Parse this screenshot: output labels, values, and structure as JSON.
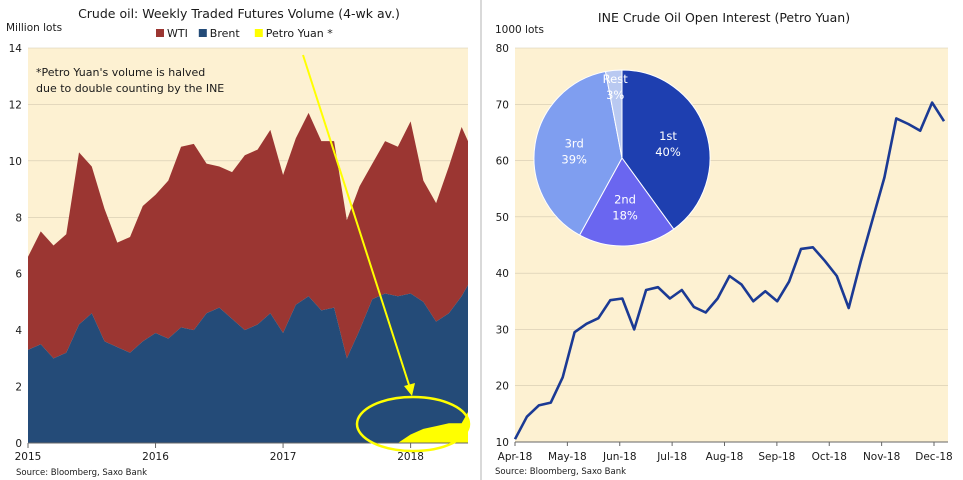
{
  "left": {
    "title": "Crude oil: Weekly Traded Futures Volume (4-wk av.)",
    "ylabel": "Million lots",
    "note_line1": "*Petro Yuan's volume is halved",
    "note_line2": "due to double counting by the INE",
    "source": "Source: Bloomberg, Saxo Bank",
    "colors": {
      "wti": "#9b3632",
      "brent": "#244b78",
      "petro": "#ffff00",
      "plot_bg": "#fdf1d2",
      "annotation": "#ffff00"
    }
  },
  "right": {
    "title": "INE Crude Oil Open Interest (Petro Yuan)",
    "ylabel": "1000 lots",
    "source": "Source: Bloomberg, Saxo Bank",
    "colors": {
      "line": "#1b3a94",
      "plot_bg": "#fdf1d2"
    }
  },
  "chart_data": [
    {
      "type": "area",
      "title": "Crude oil: Weekly Traded Futures Volume (4-wk av.)",
      "ylabel": "Million lots",
      "ylim": [
        0,
        14
      ],
      "yticks": [
        0,
        2,
        4,
        6,
        8,
        10,
        12,
        14
      ],
      "xlim": [
        2015.0,
        2018.45
      ],
      "xticks": [
        {
          "label": "2015",
          "x": 2015.0
        },
        {
          "label": "2016",
          "x": 2016.0
        },
        {
          "label": "2017",
          "x": 2017.0
        },
        {
          "label": "2018",
          "x": 2018.0
        }
      ],
      "legend_position": "top",
      "stacked": true,
      "x": [
        2015.0,
        2015.1,
        2015.2,
        2015.3,
        2015.4,
        2015.5,
        2015.6,
        2015.7,
        2015.8,
        2015.9,
        2016.0,
        2016.1,
        2016.2,
        2016.3,
        2016.4,
        2016.5,
        2016.6,
        2016.7,
        2016.8,
        2016.9,
        2017.0,
        2017.1,
        2017.2,
        2017.3,
        2017.4,
        2017.5,
        2017.6,
        2017.7,
        2017.8,
        2017.9,
        2018.0,
        2018.1,
        2018.2,
        2018.3,
        2018.4,
        2018.45
      ],
      "series": [
        {
          "name": "Brent",
          "values": [
            3.3,
            3.5,
            3.0,
            3.2,
            4.2,
            4.6,
            3.6,
            3.4,
            3.2,
            3.6,
            3.9,
            3.7,
            4.1,
            4.0,
            4.6,
            4.8,
            4.4,
            4.0,
            4.2,
            4.6,
            3.9,
            4.9,
            5.2,
            4.7,
            4.8,
            3.0,
            4.0,
            5.1,
            5.3,
            5.2,
            5.3,
            5.0,
            4.3,
            4.6,
            5.2,
            5.6
          ]
        },
        {
          "name": "WTI",
          "values": [
            3.3,
            4.0,
            4.0,
            4.2,
            6.1,
            5.2,
            4.7,
            3.7,
            4.1,
            4.8,
            4.9,
            5.6,
            6.4,
            6.6,
            5.3,
            5.0,
            5.2,
            6.2,
            6.2,
            6.5,
            5.6,
            5.9,
            6.5,
            6.0,
            5.9,
            4.9,
            5.1,
            4.8,
            5.4,
            5.3,
            6.1,
            4.3,
            4.2,
            5.2,
            6.0,
            5.1
          ]
        },
        {
          "name": "Petro Yuan *",
          "values": [
            0,
            0,
            0,
            0,
            0,
            0,
            0,
            0,
            0,
            0,
            0,
            0,
            0,
            0,
            0,
            0,
            0,
            0,
            0,
            0,
            0,
            0,
            0,
            0,
            0,
            0,
            0,
            0,
            0,
            0,
            0.3,
            0.5,
            0.6,
            0.7,
            0.7,
            1.1
          ]
        }
      ]
    },
    {
      "type": "line",
      "title": "INE Crude Oil Open Interest (Petro Yuan)",
      "ylabel": "1000 lots",
      "ylim": [
        10,
        80
      ],
      "yticks": [
        10,
        20,
        30,
        40,
        50,
        60,
        70,
        80
      ],
      "xticks": [
        "Apr-18",
        "May-18",
        "Jun-18",
        "Jul-18",
        "Aug-18",
        "Sep-18",
        "Oct-18",
        "Nov-18",
        "Dec-18"
      ],
      "series": [
        {
          "name": "Open interest",
          "values": [
            10.5,
            14.5,
            16.5,
            17.0,
            21.5,
            29.5,
            31.0,
            32.0,
            35.2,
            35.5,
            30.0,
            37.0,
            37.5,
            35.5,
            37.0,
            34.0,
            33.0,
            35.5,
            39.5,
            38.0,
            35.0,
            36.8,
            35.0,
            38.5,
            44.3,
            44.6,
            42.2,
            39.5,
            33.8,
            42.0,
            49.5,
            57.0,
            67.5,
            66.5,
            65.3,
            70.3,
            67.0
          ]
        }
      ],
      "inset": {
        "type": "pie",
        "slices": [
          {
            "label": "1st",
            "pct": "40%",
            "value": 40,
            "color": "#1e3fb0"
          },
          {
            "label": "2nd",
            "pct": "18%",
            "value": 18,
            "color": "#6a66f0"
          },
          {
            "label": "3rd",
            "pct": "39%",
            "value": 39,
            "color": "#7f9ef0"
          },
          {
            "label": "Rest",
            "pct": "3%",
            "value": 3,
            "color": "#b9c9f1"
          }
        ]
      }
    }
  ]
}
